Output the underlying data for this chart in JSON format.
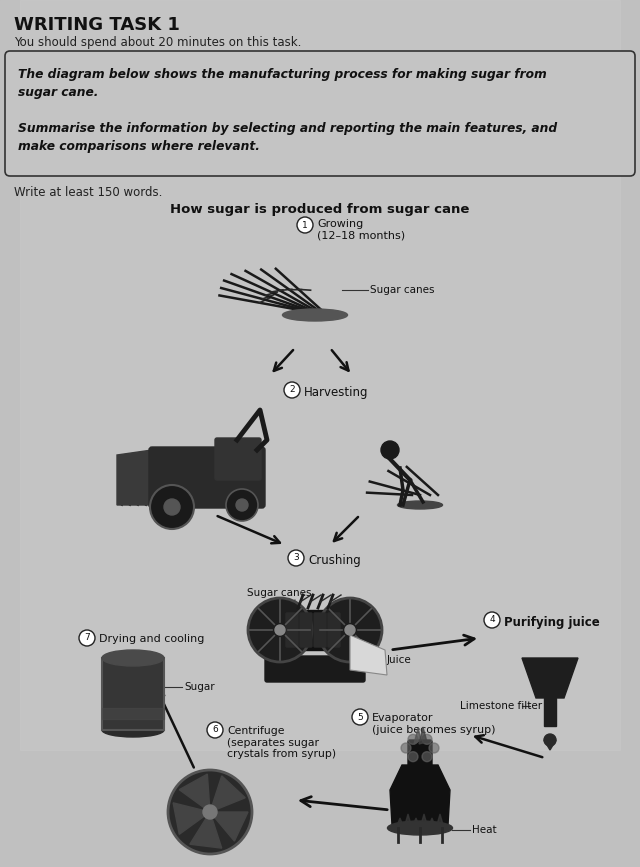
{
  "bg_color": "#b8b8b8",
  "title_main": "WRITING TASK 1",
  "subtitle": "You should spend about 20 minutes on this task.",
  "box_line1": "The diagram below shows the manufacturing process for making sugar from",
  "box_line2": "sugar cane.",
  "box_line3": "Summarise the information by selecting and reporting the main features, and",
  "box_line4": "make comparisons where relevant.",
  "write_text": "Write at least 150 words.",
  "diagram_title": "How sugar is produced from sugar cane",
  "step1_label": "Growing\n(12–18 months)",
  "step1_sub": "Sugar canes",
  "step2_label": "Harvesting",
  "step3_label": "Crushing",
  "step3_sub1": "Sugar canes",
  "step3_sub2": "Juice",
  "step4_label": "Purifying juice",
  "step4_sub": "Limestone filter",
  "step5_label": "Evaporator\n(juice becomes syrup)",
  "step5_sub": "Heat",
  "step6_label": "Centrifuge\n(separates sugar\ncrystals from syrup)",
  "step7_label": "Drying and cooling",
  "step7_sub": "Sugar"
}
